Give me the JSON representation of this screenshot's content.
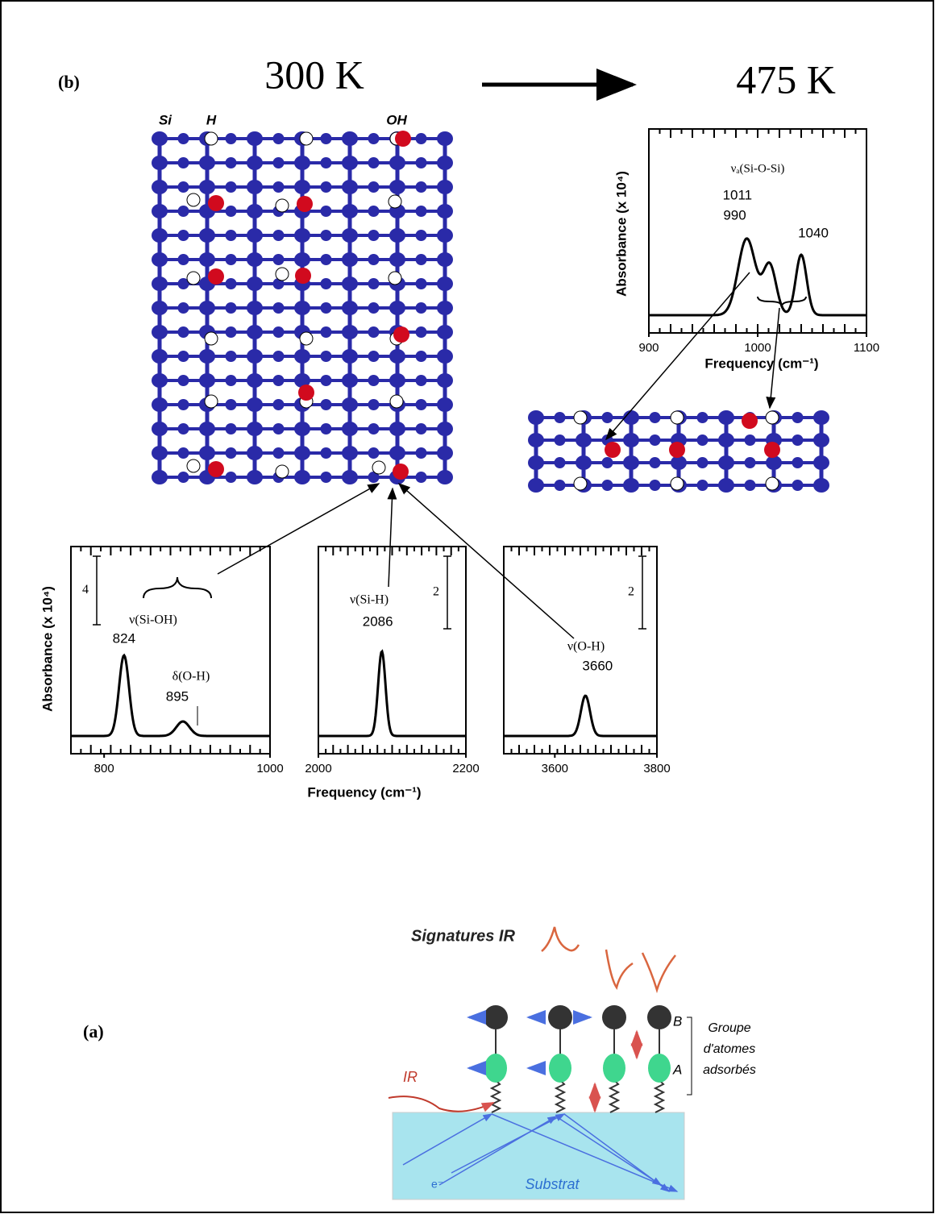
{
  "panel_labels": {
    "b": "(b)",
    "a": "(a)"
  },
  "temperatures": {
    "start": "300 K",
    "end": "475 K"
  },
  "lattice_labels": [
    "Si",
    "H",
    "OH"
  ],
  "top_spectrum": {
    "annotation": "νₐ(Si-O-Si)",
    "ylabel": "Absorbance (x 10⁴)",
    "xlabel": "Frequency (cm⁻¹)",
    "xlim": [
      900,
      1100
    ],
    "xticks": [
      900,
      1000,
      1100
    ],
    "peaks": [
      990,
      1011,
      1040
    ]
  },
  "bottom_spectra": {
    "ylabel": "Absorbance (x 10⁴)",
    "xlabel": "Frequency (cm⁻¹)",
    "panels": [
      {
        "xlim": [
          760,
          1000
        ],
        "xticks": [
          800,
          1000
        ],
        "scale": "4",
        "modes": [
          "ν(Si-OH)",
          "δ(O-H)"
        ],
        "peaks": [
          824,
          895
        ]
      },
      {
        "xlim": [
          2000,
          2200
        ],
        "xticks": [
          2000,
          2200
        ],
        "scale": "2",
        "modes": [
          "ν(Si-H)"
        ],
        "peaks": [
          2086
        ]
      },
      {
        "xlim": [
          3500,
          3800
        ],
        "xticks": [
          3600,
          3800
        ],
        "scale": "2",
        "modes": [
          "ν(O-H)"
        ],
        "peaks": [
          3660
        ]
      }
    ]
  },
  "schematic": {
    "title": "Signatures IR",
    "ir": "IR",
    "group": [
      "Groupe",
      "d'atomes",
      "adsorbés"
    ],
    "atom_b": "B",
    "atom_a": "A",
    "substrate": "Substrat",
    "electron": "e⁻"
  }
}
